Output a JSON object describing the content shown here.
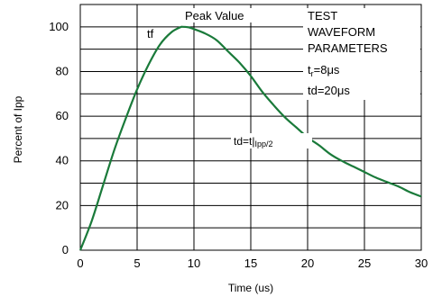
{
  "chart_data": {
    "type": "line",
    "xlabel": "Time (us)",
    "ylabel": "Percent of Ipp",
    "xlim": [
      0,
      30
    ],
    "ylim": [
      0,
      110
    ],
    "x_ticks": [
      0,
      5,
      10,
      15,
      20,
      25,
      30
    ],
    "y_ticks": [
      0,
      20,
      40,
      60,
      80,
      100
    ],
    "grid": true,
    "line_color": "#1a7a3a",
    "series": [
      {
        "x": [
          0,
          1,
          2,
          3,
          4,
          5,
          6,
          7,
          8,
          8.8,
          9,
          9.5,
          10,
          11,
          12,
          13,
          14,
          15,
          16,
          17,
          18,
          19,
          20,
          21,
          22,
          23,
          24,
          25,
          26,
          27,
          28,
          29,
          30
        ],
        "values": [
          0,
          13,
          29,
          45,
          59,
          72,
          83,
          92,
          97.5,
          99.8,
          100,
          99.8,
          99,
          97,
          94,
          89,
          84,
          78,
          71,
          65,
          59.5,
          55,
          50.5,
          47,
          43,
          40,
          37.5,
          35,
          32.5,
          30.5,
          28.5,
          26,
          24
        ]
      }
    ],
    "annotations": {
      "peak": "Peak Value",
      "tf": "tf",
      "td_def": "td=t|",
      "td_def_sub": "Ipp/2",
      "title_line1": "TEST",
      "title_line2": "WAVEFORM",
      "title_line3": "PARAMETERS",
      "tr_pre": "t",
      "tr_sub": "r",
      "tr_post": "=8μs",
      "td_val": "td=20μs"
    }
  }
}
